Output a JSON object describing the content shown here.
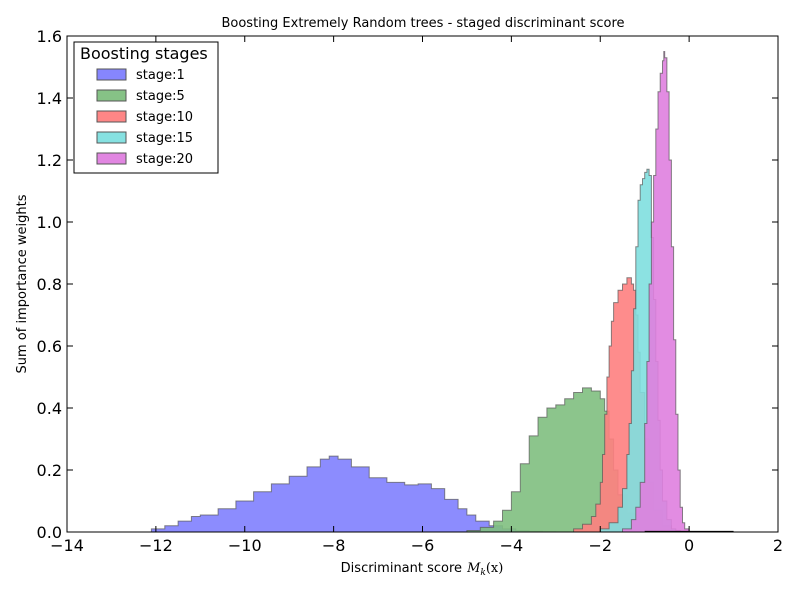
{
  "chart_data": {
    "type": "area",
    "title": "Boosting Extremely Random trees - staged discriminant score",
    "xlabel": "Discriminant score",
    "xlabel_math_symbol": "M",
    "xlabel_math_sub": "k",
    "xlabel_math_arg": "(x)",
    "ylabel": "Sum of importance weights",
    "xlim": [
      -14,
      2
    ],
    "ylim": [
      0,
      1.6
    ],
    "xticks": [
      -14,
      -12,
      -10,
      -8,
      -6,
      -4,
      -2,
      0,
      2
    ],
    "xtick_labels": [
      "−14",
      "−12",
      "−10",
      "−8",
      "−6",
      "−4",
      "−2",
      "0",
      "2"
    ],
    "yticks": [
      0,
      0.2,
      0.4,
      0.6,
      0.8,
      1.0,
      1.2,
      1.4,
      1.6
    ],
    "ytick_labels": [
      "0.0",
      "0.2",
      "0.4",
      "0.6",
      "0.8",
      "1.0",
      "1.2",
      "1.4",
      "1.6"
    ],
    "grid": false,
    "legend": {
      "title": "Boosting stages",
      "placement": "top-left"
    },
    "series": [
      {
        "name": "stage:1",
        "color": "#7f7ffe",
        "x": [
          -12.4,
          -12.1,
          -11.8,
          -11.5,
          -11.2,
          -11.0,
          -10.6,
          -10.2,
          -9.8,
          -9.4,
          -9.0,
          -8.6,
          -8.3,
          -8.1,
          -7.9,
          -7.6,
          -7.2,
          -6.8,
          -6.4,
          -6.1,
          -5.8,
          -5.5,
          -5.2,
          -5.0,
          -4.8,
          -4.5,
          -4.2,
          -3.9,
          -3.6,
          -3.3,
          -3.0
        ],
        "values": [
          0.0,
          0.01,
          0.02,
          0.035,
          0.05,
          0.055,
          0.075,
          0.1,
          0.13,
          0.155,
          0.18,
          0.21,
          0.235,
          0.245,
          0.235,
          0.21,
          0.175,
          0.16,
          0.152,
          0.155,
          0.14,
          0.105,
          0.075,
          0.055,
          0.035,
          0.02,
          0.01,
          0.004,
          0.002,
          0.001,
          0.0
        ]
      },
      {
        "name": "stage:5",
        "color": "#7fbf7f",
        "x": [
          -5.3,
          -5.0,
          -4.7,
          -4.4,
          -4.2,
          -4.0,
          -3.8,
          -3.6,
          -3.4,
          -3.2,
          -3.0,
          -2.8,
          -2.6,
          -2.4,
          -2.2,
          -2.0,
          -1.9,
          -1.8,
          -1.7,
          -1.6,
          -1.4,
          -1.2,
          -1.0,
          -0.8,
          -0.6,
          -0.4,
          -0.2
        ],
        "values": [
          0.0,
          0.005,
          0.015,
          0.035,
          0.07,
          0.13,
          0.22,
          0.31,
          0.37,
          0.4,
          0.41,
          0.43,
          0.45,
          0.465,
          0.455,
          0.43,
          0.39,
          0.3,
          0.2,
          0.12,
          0.06,
          0.03,
          0.015,
          0.008,
          0.004,
          0.002,
          0.0
        ]
      },
      {
        "name": "stage:10",
        "color": "#fe7f7f",
        "x": [
          -3.0,
          -2.6,
          -2.4,
          -2.2,
          -2.1,
          -2.0,
          -1.95,
          -1.9,
          -1.85,
          -1.8,
          -1.75,
          -1.7,
          -1.6,
          -1.5,
          -1.4,
          -1.3,
          -1.25,
          -1.2,
          -1.15,
          -1.1,
          -1.0,
          -0.9,
          -0.8,
          -0.6,
          -0.4,
          -0.2
        ],
        "values": [
          0.0,
          0.01,
          0.025,
          0.05,
          0.09,
          0.16,
          0.25,
          0.38,
          0.5,
          0.6,
          0.68,
          0.74,
          0.78,
          0.8,
          0.82,
          0.8,
          0.78,
          0.7,
          0.58,
          0.45,
          0.3,
          0.16,
          0.07,
          0.02,
          0.005,
          0.0
        ]
      },
      {
        "name": "stage:15",
        "color": "#7fdfdf",
        "x": [
          -2.2,
          -2.0,
          -1.8,
          -1.6,
          -1.5,
          -1.4,
          -1.35,
          -1.3,
          -1.25,
          -1.2,
          -1.15,
          -1.1,
          -1.05,
          -1.0,
          -0.95,
          -0.9,
          -0.85,
          -0.8,
          -0.75,
          -0.7,
          -0.65,
          -0.6,
          -0.5,
          -0.4,
          -0.3,
          -0.2
        ],
        "values": [
          0.0,
          0.01,
          0.03,
          0.08,
          0.14,
          0.25,
          0.35,
          0.52,
          0.72,
          0.92,
          1.07,
          1.12,
          1.14,
          1.16,
          1.17,
          1.15,
          0.95,
          0.75,
          0.55,
          0.36,
          0.2,
          0.1,
          0.04,
          0.01,
          0.003,
          0.0
        ]
      },
      {
        "name": "stage:20",
        "color": "#df7fdf",
        "x": [
          -1.8,
          -1.5,
          -1.3,
          -1.2,
          -1.1,
          -1.0,
          -0.95,
          -0.9,
          -0.85,
          -0.8,
          -0.75,
          -0.7,
          -0.65,
          -0.6,
          -0.57,
          -0.55,
          -0.5,
          -0.45,
          -0.4,
          -0.35,
          -0.3,
          -0.25,
          -0.2,
          -0.15,
          -0.1,
          0.0
        ],
        "values": [
          0.0,
          0.01,
          0.04,
          0.08,
          0.16,
          0.35,
          0.55,
          0.8,
          1.0,
          1.15,
          1.3,
          1.42,
          1.48,
          1.52,
          1.55,
          1.53,
          1.42,
          1.2,
          0.92,
          0.62,
          0.38,
          0.2,
          0.08,
          0.03,
          0.01,
          0.0
        ]
      }
    ]
  }
}
